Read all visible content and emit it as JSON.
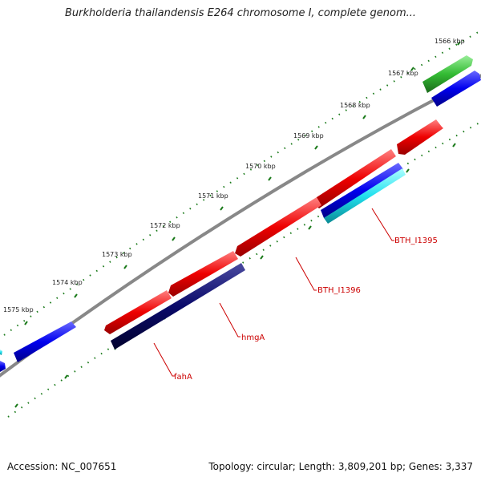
{
  "title": "Burkholderia thailandensis E264 chromosome I, complete genom...",
  "footer": {
    "accession": "Accession: NC_007651",
    "summary": "Topology: circular; Length: 3,809,201 bp; Genes: 3,337"
  },
  "colors": {
    "forward_gene": "#ee0000",
    "reverse_gene": "#0000ee",
    "reverse_gene_dark": "#0a0a6a",
    "reverse_gene_cyan": "#20e0ee",
    "forward_green": "#33bb33",
    "backbone": "#888888",
    "tick": "#1a7a1a",
    "label": "#cc0000"
  },
  "kbp_labels": [
    "1566 kbp",
    "1567 kbp",
    "1568 kbp",
    "1569 kbp",
    "1570 kbp",
    "1571 kbp",
    "1572 kbp",
    "1573 kbp",
    "1574 kbp",
    "1575 kbp"
  ],
  "gene_labels": [
    "BTH_I1395",
    "BTH_I1396",
    "hmgA",
    "fahA"
  ]
}
